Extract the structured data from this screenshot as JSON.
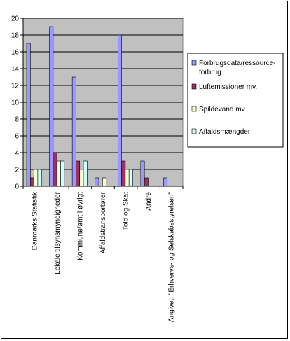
{
  "chart_data": {
    "type": "bar",
    "title": "",
    "xlabel": "",
    "ylabel": "",
    "ylim": [
      0,
      20
    ],
    "yticks": [
      0,
      2,
      4,
      6,
      8,
      10,
      12,
      14,
      16,
      18,
      20
    ],
    "grid": true,
    "legend_position": "right",
    "categories": [
      "Danmarks Statistik",
      "Lokale tilsynsmyndigheder",
      "Kommune/amt i øvrigt",
      "Affaldstransportører",
      "Told og Skat",
      "Andre",
      "Angivet: \"Erhvervs- og Selskabsstyrelsen\""
    ],
    "series": [
      {
        "name": "Forbrugsdata/ressource-forbrug",
        "legend_lines": [
          "Forbrugsdata/ressource-",
          "forbrug"
        ],
        "color": "#9999ff",
        "values": [
          17,
          19,
          13,
          1,
          18,
          3,
          1
        ]
      },
      {
        "name": "Luftemissioner mv.",
        "color": "#993366",
        "values": [
          1,
          4,
          3,
          0,
          3,
          1,
          0
        ]
      },
      {
        "name": "Spildevand mv.",
        "color": "#ffffcc",
        "values": [
          2,
          3,
          2,
          1,
          2,
          0,
          0
        ]
      },
      {
        "name": "Affaldsmængder",
        "color": "#ccffff",
        "values": [
          2,
          3,
          3,
          0,
          2,
          0,
          0
        ]
      }
    ],
    "colors": {
      "plot_background": "#c0c0c0",
      "gridline": "#000000",
      "bar_stroke": "#000000"
    }
  }
}
